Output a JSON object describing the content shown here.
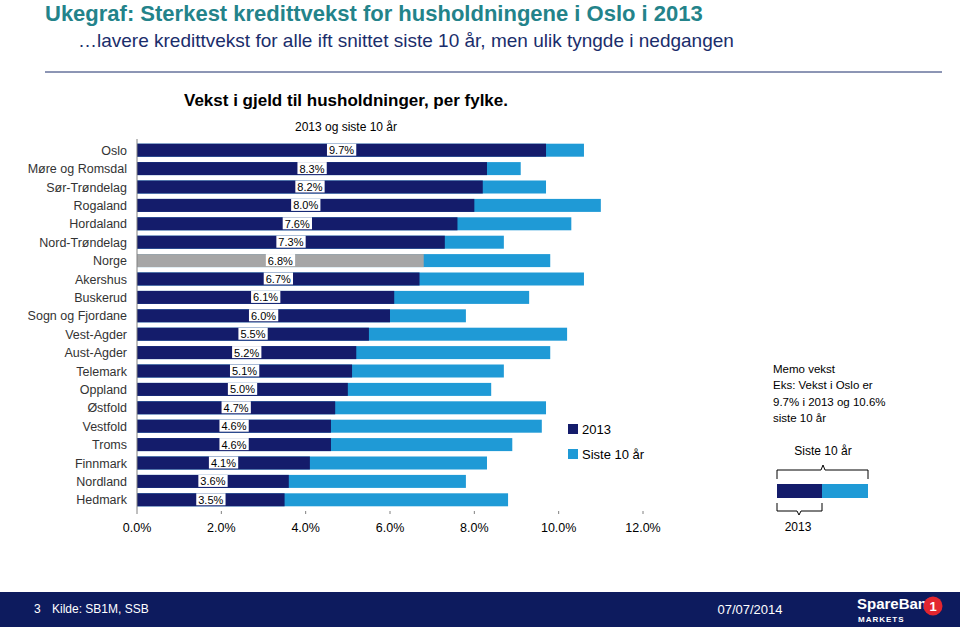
{
  "page": {
    "title": "Ukegraf: Sterkest kredittvekst for husholdningene i Oslo i 2013",
    "subtitle": "…lavere kredittvekst for alle ift snittet siste 10 år, men ulik tyngde i nedgangen",
    "memo": {
      "heading": "Memo vekst",
      "lines": [
        "Eks: Vekst i Oslo er",
        "9.7% i 2013 og 10.6%",
        "siste 10 år"
      ],
      "top_label": "Siste 10 år",
      "bottom_label": "2013"
    },
    "footer": {
      "page_number": "3",
      "source": "Kilde: SB1M, SSB",
      "date": "07/07/2014",
      "logo": "SpareBank",
      "logo_mark": "1",
      "logo_sub": "MARKETS"
    }
  },
  "chart_data": {
    "type": "bar",
    "title": "Vekst i gjeld til husholdninger, per fylke.",
    "subtitle": "2013 og siste 10 år",
    "orientation": "horizontal",
    "stacked": false,
    "grid": false,
    "legend": "right",
    "data_labels": true,
    "categories": [
      "Oslo",
      "Møre og Romsdal",
      "Sør-Trøndelag",
      "Rogaland",
      "Hordaland",
      "Nord-Trøndelag",
      "Norge",
      "Akershus",
      "Buskerud",
      "Sogn og Fjordane",
      "Vest-Agder",
      "Aust-Agder",
      "Telemark",
      "Oppland",
      "Østfold",
      "Vestfold",
      "Troms",
      "Finnmark",
      "Nordland",
      "Hedmark"
    ],
    "series": [
      {
        "name": "2013",
        "color": "#141c6b",
        "colors": [
          "#141c6b",
          "#141c6b",
          "#141c6b",
          "#141c6b",
          "#141c6b",
          "#141c6b",
          "#a6a6a6",
          "#141c6b",
          "#141c6b",
          "#141c6b",
          "#141c6b",
          "#141c6b",
          "#141c6b",
          "#141c6b",
          "#141c6b",
          "#141c6b",
          "#141c6b",
          "#141c6b",
          "#141c6b",
          "#141c6b"
        ],
        "values": [
          9.7,
          8.3,
          8.2,
          8.0,
          7.6,
          7.3,
          6.8,
          6.7,
          6.1,
          6.0,
          5.5,
          5.2,
          5.1,
          5.0,
          4.7,
          4.6,
          4.6,
          4.1,
          3.6,
          3.5
        ],
        "value_labels": [
          "9.7%",
          "8.3%",
          "8.2%",
          "8.0%",
          "7.6%",
          "7.3%",
          "6.8%",
          "6.7%",
          "6.1%",
          "6.0%",
          "5.5%",
          "5.2%",
          "5.1%",
          "5.0%",
          "4.7%",
          "4.6%",
          "4.6%",
          "4.1%",
          "3.6%",
          "3.5%"
        ]
      },
      {
        "name": "Siste 10 år",
        "color": "#1f9ad6",
        "values": [
          10.6,
          9.1,
          9.7,
          11.0,
          10.3,
          8.7,
          9.8,
          10.6,
          9.3,
          7.8,
          10.2,
          9.8,
          8.7,
          8.4,
          9.7,
          9.6,
          8.9,
          8.3,
          7.8,
          8.8
        ]
      }
    ],
    "xlim": [
      0,
      12
    ],
    "xticks": [
      {
        "value": 0,
        "label": "0.0%"
      },
      {
        "value": 2,
        "label": "2.0%"
      },
      {
        "value": 4,
        "label": "4.0%"
      },
      {
        "value": 6,
        "label": "6.0%"
      },
      {
        "value": 8,
        "label": "8.0%"
      },
      {
        "value": 10,
        "label": "10.0%"
      },
      {
        "value": 12,
        "label": "12.0%"
      }
    ]
  }
}
